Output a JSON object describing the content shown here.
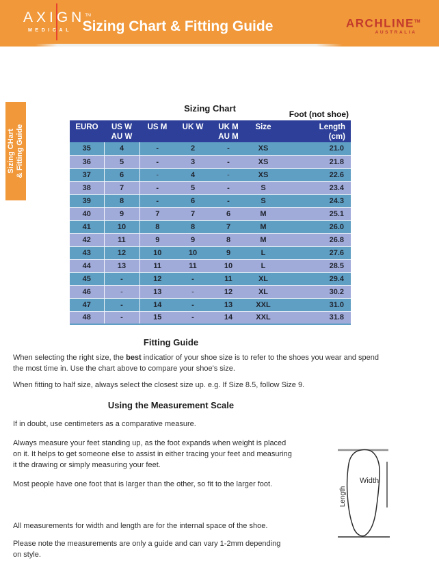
{
  "header": {
    "brand_left": {
      "name": "AXIGN",
      "tm": "TM",
      "sub": "MEDICAL"
    },
    "title": "Sizing Chart & Fitting Guide",
    "brand_right": {
      "name": "ARCHLINE",
      "tm": "TM",
      "sub": "AUSTRALIA"
    }
  },
  "side_tab": {
    "line1": "Sizing CHart",
    "line2": "& Fitting Guide"
  },
  "sizing_chart": {
    "title": "Sizing Chart",
    "foot_note": "Foot (not shoe)",
    "columns": [
      {
        "l1": "EURO",
        "l2": ""
      },
      {
        "l1": "US W",
        "l2": "AU W"
      },
      {
        "l1": "US M",
        "l2": ""
      },
      {
        "l1": "UK W",
        "l2": ""
      },
      {
        "l1": "UK M",
        "l2": "AU M"
      },
      {
        "l1": "Size",
        "l2": ""
      },
      {
        "l1": "Length",
        "l2": "(cm)"
      }
    ],
    "rows": [
      [
        "35",
        "4",
        "-",
        "2",
        "-",
        "XS",
        "21.0"
      ],
      [
        "36",
        "5",
        "-",
        "3",
        "-",
        "XS",
        "21.8"
      ],
      [
        "37",
        "6",
        "-",
        "4",
        "-",
        "XS",
        "22.6"
      ],
      [
        "38",
        "7",
        "-",
        "5",
        "-",
        "S",
        "23.4"
      ],
      [
        "39",
        "8",
        "-",
        "6",
        "-",
        "S",
        "24.3"
      ],
      [
        "40",
        "9",
        "7",
        "7",
        "6",
        "M",
        "25.1"
      ],
      [
        "41",
        "10",
        "8",
        "8",
        "7",
        "M",
        "26.0"
      ],
      [
        "42",
        "11",
        "9",
        "9",
        "8",
        "M",
        "26.8"
      ],
      [
        "43",
        "12",
        "10",
        "10",
        "9",
        "L",
        "27.6"
      ],
      [
        "44",
        "13",
        "11",
        "11",
        "10",
        "L",
        "28.5"
      ],
      [
        "45",
        "-",
        "12",
        "-",
        "11",
        "XL",
        "29.4"
      ],
      [
        "46",
        "-",
        "13",
        "-",
        "12",
        "XL",
        "30.2"
      ],
      [
        "47",
        "-",
        "14",
        "-",
        "13",
        "XXL",
        "31.0"
      ],
      [
        "48",
        "-",
        "15",
        "-",
        "14",
        "XXL",
        "31.8"
      ]
    ],
    "light_dash_rows": [
      2,
      11
    ]
  },
  "fitting_guide": {
    "heading": "Fitting Guide",
    "p1_before": "When selecting the right size, the ",
    "p1_bold": "best",
    "p1_after": " indicatior of your shoe size is to refer to the shoes you wear and spend\nthe most time in. Use the chart above to compare your shoe's size.",
    "p2": "When fitting to half size, always select the closest size up. e.g. If Size 8.5, follow Size 9."
  },
  "measurement_scale": {
    "heading": "Using the Measurement Scale",
    "p1": "If in doubt, use centimeters as a comparative measure.",
    "p2": "Always measure your feet standing up, as the foot expands when weight is placed\non it. It helps to get someone else to assist in either tracing your feet and measuring\nit the drawing or simply measuring your feet.",
    "p3": "Most people have one foot that is larger than the other, so fit to the larger foot.",
    "p4": "All measurements for width and length are for the internal space of the shoe.",
    "p5": "Please note the measurements are only a guide and can vary 1-2mm depending\non style.",
    "diagram": {
      "width_label": "Width",
      "length_label": "Length"
    }
  },
  "colors": {
    "orange": "#F0983A",
    "header_navy": "#2D3F98",
    "row_blue": "#5F9FC4",
    "row_periwinkle": "#A1ABDA",
    "brand_red": "#C2392C",
    "accent_red": "#E8432F"
  }
}
